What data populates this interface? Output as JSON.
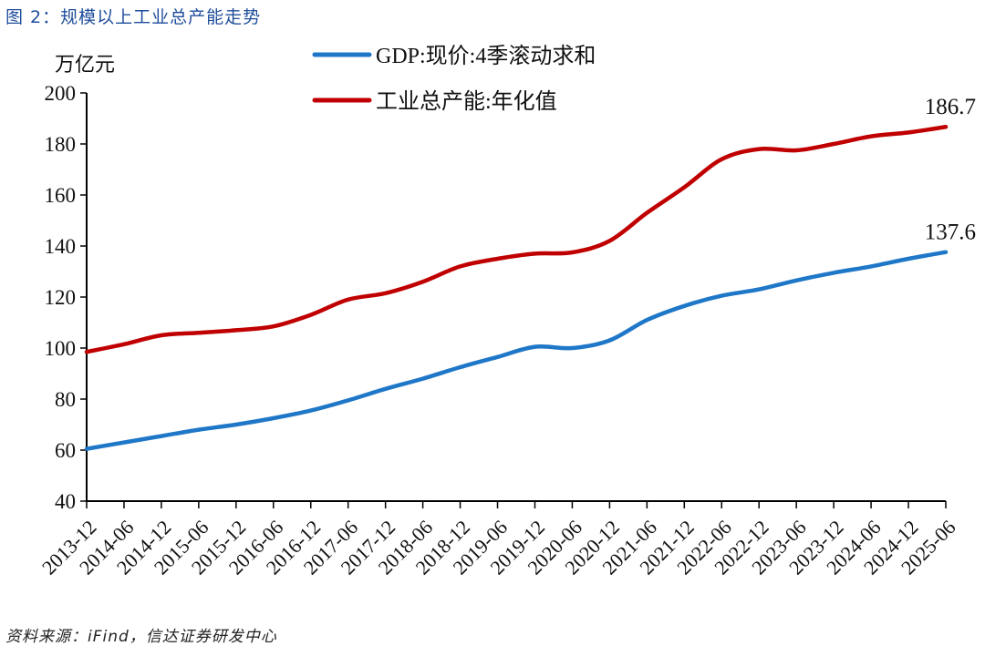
{
  "title": "图 2：规模以上工业总产能走势",
  "source": "资料来源：iFind，信达证券研发中心",
  "chart_data": {
    "type": "line",
    "title": "",
    "ylabel": "万亿元",
    "xlabel": "",
    "ylim": [
      40,
      200
    ],
    "yticks": [
      40,
      60,
      80,
      100,
      120,
      140,
      160,
      180,
      200
    ],
    "grid": false,
    "legend": "top-center",
    "categories": [
      "2013-12",
      "2014-06",
      "2014-12",
      "2015-06",
      "2015-12",
      "2016-06",
      "2016-12",
      "2017-06",
      "2017-12",
      "2018-06",
      "2018-12",
      "2019-06",
      "2019-12",
      "2020-06",
      "2020-12",
      "2021-06",
      "2021-12",
      "2022-06",
      "2022-12",
      "2023-06",
      "2023-12",
      "2024-06",
      "2024-12",
      "2025-06"
    ],
    "series": [
      {
        "name": "GDP:现价:4季滚动求和",
        "color": "#1f77c8",
        "values": [
          60.5,
          63,
          65.5,
          68,
          70,
          72.5,
          75.5,
          79.5,
          84,
          88,
          92.5,
          96.5,
          100.5,
          100,
          103,
          111,
          116.5,
          120.5,
          123,
          126.5,
          129.5,
          132,
          135,
          137.6
        ],
        "end_label": "137.6"
      },
      {
        "name": "工业总产能:年化值",
        "color": "#c00000",
        "values": [
          98.5,
          101.5,
          105,
          106,
          107,
          108.5,
          113,
          119,
          121.5,
          126,
          132,
          135,
          137,
          137.5,
          142,
          153,
          163,
          174,
          178,
          177.5,
          180,
          183,
          184.5,
          186.7
        ],
        "end_label": "186.7"
      }
    ]
  }
}
